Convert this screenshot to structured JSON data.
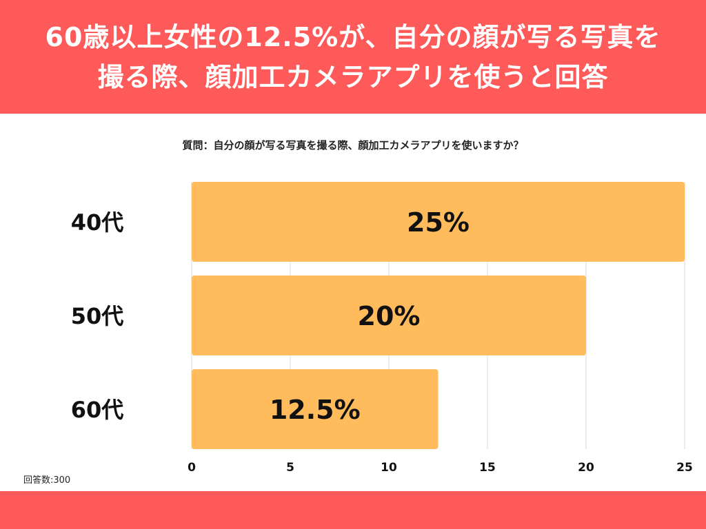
{
  "header": {
    "title_line1": "60歳以上女性の12.5%が、自分の顔が写る写真を",
    "title_line2": "撮る際、顔加工カメラアプリを使うと回答"
  },
  "question": "質問：自分の顔が写る写真を撮る際、顔加工カメラアプリを使いますか？",
  "sample_size": "回答数:300",
  "colors": {
    "header_bg": "#ff5a5a",
    "bar": "#ffbb5c",
    "grid": "#d9d9d9"
  },
  "chart_data": {
    "type": "bar",
    "orientation": "horizontal",
    "title": "",
    "categories": [
      "40代",
      "50代",
      "60代"
    ],
    "values": [
      25,
      20,
      12.5
    ],
    "data_labels": [
      "25%",
      "20%",
      "12.5%"
    ],
    "xlim": [
      0,
      25
    ],
    "x_ticks": [
      0,
      5,
      10,
      15,
      20,
      25
    ],
    "x_tick_labels": [
      "0",
      "5",
      "10",
      "15",
      "20",
      "25"
    ],
    "grid": true,
    "legend": "none"
  }
}
